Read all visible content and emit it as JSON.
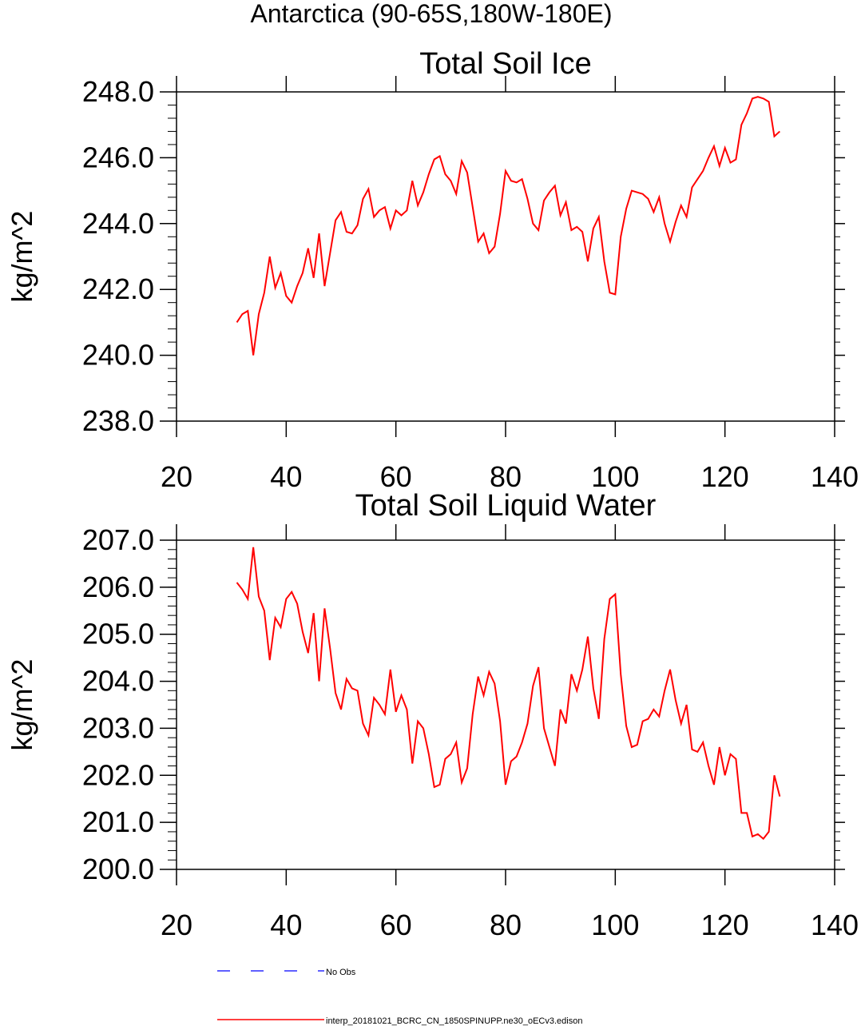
{
  "figure_title": "Antarctica (90-65S,180W-180E)",
  "colors": {
    "model_line": "#ff0000",
    "obs_line": "#0000ff",
    "axes": "#000000"
  },
  "chart_data": [
    {
      "type": "line",
      "title": "Total Soil Ice",
      "xlabel": "",
      "ylabel": "kg/m^2",
      "xlim": [
        20,
        140
      ],
      "ylim": [
        238,
        248
      ],
      "x_ticks": [
        20,
        40,
        60,
        80,
        100,
        120,
        140
      ],
      "x_tick_labels": [
        "20",
        "40",
        "60",
        "80",
        "100",
        "120",
        "140"
      ],
      "y_ticks": [
        238,
        240,
        242,
        244,
        246,
        248
      ],
      "y_tick_labels": [
        "238.0",
        "240.0",
        "242.0",
        "244.0",
        "246.0",
        "248.0"
      ],
      "x_start": 31,
      "series": [
        {
          "name": "interp_20181021_BCRC_CN_1850SPINUPP.ne30_oECv3.edison",
          "color": "#ff0000",
          "values": [
            241.0,
            241.25,
            241.35,
            240.0,
            241.25,
            241.9,
            243.0,
            242.05,
            242.5,
            241.8,
            241.6,
            242.1,
            242.5,
            243.25,
            242.35,
            243.7,
            242.1,
            243.1,
            244.1,
            244.35,
            243.75,
            243.7,
            243.95,
            244.75,
            245.05,
            244.2,
            244.4,
            244.5,
            243.85,
            244.4,
            244.25,
            244.4,
            245.3,
            244.55,
            244.95,
            245.5,
            245.95,
            246.05,
            245.5,
            245.3,
            244.9,
            245.9,
            245.55,
            244.5,
            243.45,
            243.7,
            243.1,
            243.3,
            244.3,
            245.6,
            245.3,
            245.25,
            245.35,
            244.75,
            244.0,
            243.8,
            244.7,
            244.95,
            245.15,
            244.25,
            244.65,
            243.8,
            243.9,
            243.75,
            242.85,
            243.85,
            244.2,
            242.85,
            241.9,
            241.85,
            243.6,
            244.45,
            245.0,
            244.95,
            244.9,
            244.75,
            244.35,
            244.8,
            244.0,
            243.45,
            244.05,
            244.55,
            244.2,
            245.1,
            245.35,
            245.6,
            246.0,
            246.35,
            245.75,
            246.3,
            245.85,
            245.95,
            247.0,
            247.35,
            247.8,
            247.85,
            247.8,
            247.7,
            246.65,
            246.8
          ]
        }
      ]
    },
    {
      "type": "line",
      "title": "Total Soil Liquid Water",
      "xlabel": "",
      "ylabel": "kg/m^2",
      "xlim": [
        20,
        140
      ],
      "ylim": [
        200,
        207
      ],
      "x_ticks": [
        20,
        40,
        60,
        80,
        100,
        120,
        140
      ],
      "x_tick_labels": [
        "20",
        "40",
        "60",
        "80",
        "100",
        "120",
        "140"
      ],
      "y_ticks": [
        200,
        201,
        202,
        203,
        204,
        205,
        206,
        207
      ],
      "y_tick_labels": [
        "200.0",
        "201.0",
        "202.0",
        "203.0",
        "204.0",
        "205.0",
        "206.0",
        "207.0"
      ],
      "x_start": 31,
      "series": [
        {
          "name": "interp_20181021_BCRC_CN_1850SPINUPP.ne30_oECv3.edison",
          "color": "#ff0000",
          "values": [
            206.1,
            205.95,
            205.75,
            206.85,
            205.8,
            205.5,
            204.45,
            205.35,
            205.15,
            205.75,
            205.9,
            205.65,
            205.05,
            204.6,
            205.45,
            204.0,
            205.55,
            204.7,
            203.75,
            203.4,
            204.05,
            203.85,
            203.8,
            203.1,
            202.85,
            203.65,
            203.5,
            203.3,
            204.25,
            203.35,
            203.7,
            203.4,
            202.25,
            203.15,
            203.0,
            202.45,
            201.75,
            201.8,
            202.35,
            202.45,
            202.7,
            201.85,
            202.15,
            203.3,
            204.1,
            203.7,
            204.2,
            203.95,
            203.15,
            201.8,
            202.3,
            202.4,
            202.7,
            203.1,
            203.9,
            204.3,
            203.0,
            202.6,
            202.2,
            203.4,
            203.1,
            204.15,
            203.8,
            204.25,
            204.95,
            203.85,
            203.2,
            204.9,
            205.75,
            205.85,
            204.15,
            203.05,
            202.6,
            202.65,
            203.15,
            203.2,
            203.4,
            203.25,
            203.8,
            204.25,
            203.6,
            203.1,
            203.5,
            202.55,
            202.5,
            202.7,
            202.2,
            201.8,
            202.6,
            202.0,
            202.45,
            202.35,
            201.2,
            201.2,
            200.7,
            200.75,
            200.65,
            200.8,
            202.0,
            201.55
          ]
        }
      ]
    }
  ],
  "legend": {
    "placement": "bottom",
    "items": [
      {
        "label": "No Obs",
        "color": "#0000ff",
        "dash": "dashed"
      },
      {
        "label": "interp_20181021_BCRC_CN_1850SPINUPP.ne30_oECv3.edison",
        "color": "#ff0000",
        "dash": "solid"
      }
    ]
  }
}
